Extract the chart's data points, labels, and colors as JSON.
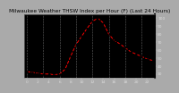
{
  "title": "Milwaukee Weather THSW Index per Hour (F) (Last 24 Hours)",
  "fig_bg_color": "#aaaaaa",
  "plot_bg_color": "#000000",
  "line_color": "#ff0000",
  "marker_color": "#000000",
  "grid_color": "#666666",
  "hours": [
    0,
    1,
    2,
    3,
    4,
    5,
    6,
    7,
    8,
    9,
    10,
    11,
    12,
    13,
    14,
    15,
    16,
    17,
    18,
    19,
    20,
    21,
    22,
    23
  ],
  "values": [
    33,
    32,
    31,
    30,
    30,
    29,
    30,
    36,
    52,
    67,
    77,
    87,
    96,
    100,
    94,
    80,
    72,
    68,
    63,
    58,
    55,
    52,
    49,
    47
  ],
  "ylim": [
    25,
    105
  ],
  "ytick_values": [
    30,
    40,
    50,
    60,
    70,
    80,
    90,
    100
  ],
  "ytick_labels": [
    "30",
    "40",
    "50",
    "60",
    "70",
    "80",
    "90",
    "100"
  ],
  "xtick_positions": [
    0,
    2,
    4,
    6,
    8,
    10,
    12,
    14,
    16,
    18,
    20,
    22
  ],
  "xtick_labels": [
    "0",
    "2",
    "4",
    "6",
    "8",
    "10",
    "12",
    "14",
    "16",
    "18",
    "20",
    "22"
  ],
  "grid_x_positions": [
    0,
    3,
    6,
    9,
    12,
    15,
    18,
    21
  ],
  "title_color": "#000000",
  "title_fontsize": 4.2,
  "tick_fontsize": 3.2,
  "line_width": 0.7,
  "marker_size": 1.5,
  "right_border_color": "#000000",
  "spine_color": "#000000"
}
